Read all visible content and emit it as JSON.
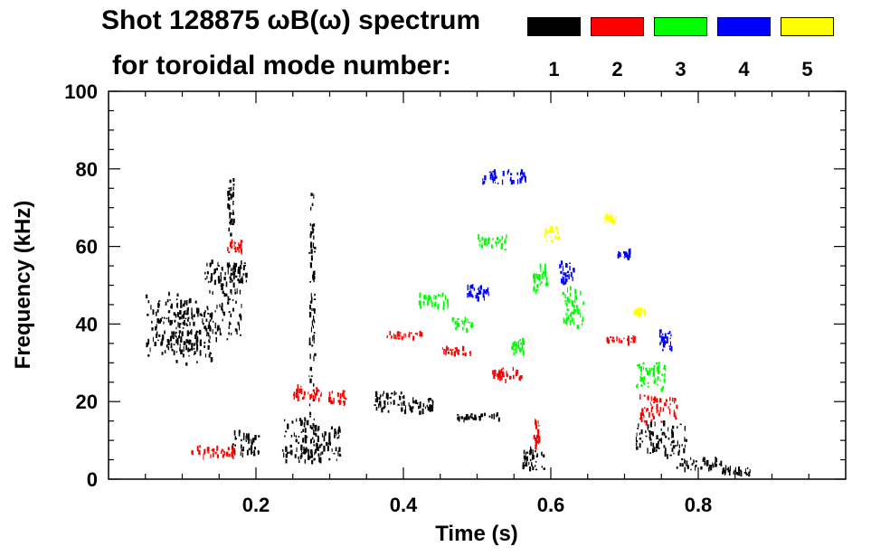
{
  "chart_data": {
    "type": "heatmap",
    "title": "Shot 128875 ωB(ω) spectrum",
    "subtitle": "for toroidal mode number:",
    "xlabel": "Time (s)",
    "ylabel": "Frequency (kHz)",
    "xlim": [
      0.0,
      1.0
    ],
    "ylim": [
      0,
      100
    ],
    "x_ticks": [
      {
        "value": 0.2,
        "label": "0.2"
      },
      {
        "value": 0.4,
        "label": "0.4"
      },
      {
        "value": 0.6,
        "label": "0.6"
      },
      {
        "value": 0.8,
        "label": "0.8"
      }
    ],
    "y_ticks": [
      {
        "value": 0,
        "label": "0"
      },
      {
        "value": 20,
        "label": "20"
      },
      {
        "value": 40,
        "label": "40"
      },
      {
        "value": 60,
        "label": "60"
      },
      {
        "value": 80,
        "label": "80"
      },
      {
        "value": 100,
        "label": "100"
      }
    ],
    "legend": [
      {
        "mode": "1",
        "color": "#000000"
      },
      {
        "mode": "2",
        "color": "#ff0000"
      },
      {
        "mode": "3",
        "color": "#00ff00"
      },
      {
        "mode": "4",
        "color": "#0000ff"
      },
      {
        "mode": "5",
        "color": "#ffff00"
      }
    ],
    "series": [
      {
        "name": "n=1",
        "color": "#000000",
        "blobs": [
          {
            "t": 0.085,
            "f": 40,
            "dt": 0.035,
            "df": 9
          },
          {
            "t": 0.115,
            "f": 37,
            "dt": 0.025,
            "df": 8
          },
          {
            "t": 0.155,
            "f": 46,
            "dt": 0.025,
            "df": 11
          },
          {
            "t": 0.175,
            "f": 53,
            "dt": 0.012,
            "df": 3
          },
          {
            "t": 0.185,
            "f": 9,
            "dt": 0.018,
            "df": 4
          },
          {
            "t": 0.165,
            "f": 70,
            "dt": 0.004,
            "df": 8
          },
          {
            "t": 0.26,
            "f": 10,
            "dt": 0.025,
            "df": 6
          },
          {
            "t": 0.29,
            "f": 9,
            "dt": 0.025,
            "df": 5
          },
          {
            "t": 0.275,
            "f": 45,
            "dt": 0.004,
            "df": 35
          },
          {
            "t": 0.38,
            "f": 20,
            "dt": 0.02,
            "df": 3
          },
          {
            "t": 0.42,
            "f": 19,
            "dt": 0.02,
            "df": 2
          },
          {
            "t": 0.5,
            "f": 16,
            "dt": 0.03,
            "df": 1
          },
          {
            "t": 0.575,
            "f": 5,
            "dt": 0.015,
            "df": 3
          },
          {
            "t": 0.75,
            "f": 10,
            "dt": 0.035,
            "df": 5
          },
          {
            "t": 0.8,
            "f": 4,
            "dt": 0.03,
            "df": 2
          },
          {
            "t": 0.85,
            "f": 2,
            "dt": 0.02,
            "df": 1
          }
        ]
      },
      {
        "name": "n=2",
        "color": "#ff0000",
        "blobs": [
          {
            "t": 0.17,
            "f": 60,
            "dt": 0.01,
            "df": 2
          },
          {
            "t": 0.14,
            "f": 7,
            "dt": 0.03,
            "df": 2
          },
          {
            "t": 0.27,
            "f": 22,
            "dt": 0.02,
            "df": 2
          },
          {
            "t": 0.31,
            "f": 21,
            "dt": 0.012,
            "df": 2
          },
          {
            "t": 0.4,
            "f": 37,
            "dt": 0.025,
            "df": 1
          },
          {
            "t": 0.47,
            "f": 33,
            "dt": 0.02,
            "df": 1
          },
          {
            "t": 0.54,
            "f": 27,
            "dt": 0.02,
            "df": 2
          },
          {
            "t": 0.58,
            "f": 12,
            "dt": 0.004,
            "df": 4
          },
          {
            "t": 0.695,
            "f": 36,
            "dt": 0.02,
            "df": 1
          },
          {
            "t": 0.745,
            "f": 18,
            "dt": 0.025,
            "df": 4
          }
        ]
      },
      {
        "name": "n=3",
        "color": "#00ff00",
        "blobs": [
          {
            "t": 0.44,
            "f": 46,
            "dt": 0.02,
            "df": 2
          },
          {
            "t": 0.48,
            "f": 40,
            "dt": 0.015,
            "df": 2
          },
          {
            "t": 0.52,
            "f": 61,
            "dt": 0.02,
            "df": 2
          },
          {
            "t": 0.555,
            "f": 34,
            "dt": 0.01,
            "df": 2
          },
          {
            "t": 0.585,
            "f": 52,
            "dt": 0.01,
            "df": 4
          },
          {
            "t": 0.63,
            "f": 44,
            "dt": 0.015,
            "df": 6
          },
          {
            "t": 0.735,
            "f": 27,
            "dt": 0.02,
            "df": 4
          }
        ]
      },
      {
        "name": "n=4",
        "color": "#0000ff",
        "blobs": [
          {
            "t": 0.535,
            "f": 78,
            "dt": 0.03,
            "df": 2
          },
          {
            "t": 0.5,
            "f": 48,
            "dt": 0.015,
            "df": 2
          },
          {
            "t": 0.62,
            "f": 53,
            "dt": 0.01,
            "df": 3
          },
          {
            "t": 0.7,
            "f": 58,
            "dt": 0.01,
            "df": 1
          },
          {
            "t": 0.755,
            "f": 36,
            "dt": 0.008,
            "df": 3
          }
        ]
      },
      {
        "name": "n=5",
        "color": "#ffff00",
        "blobs": [
          {
            "t": 0.6,
            "f": 63,
            "dt": 0.01,
            "df": 2
          },
          {
            "t": 0.68,
            "f": 67,
            "dt": 0.008,
            "df": 1
          },
          {
            "t": 0.72,
            "f": 43,
            "dt": 0.008,
            "df": 1
          }
        ]
      }
    ]
  }
}
